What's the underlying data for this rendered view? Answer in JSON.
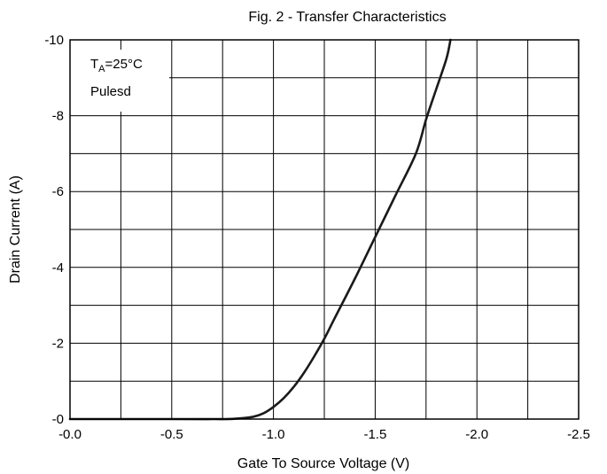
{
  "chart_data": {
    "type": "line",
    "title": "Fig. 2 - Transfer Characteristics",
    "xlabel": "Gate To Source Voltage (V)",
    "ylabel": "Drain Current (A)",
    "xlim": [
      0,
      -2.5
    ],
    "ylim": [
      0,
      -10
    ],
    "x_ticks": [
      0,
      -0.25,
      -0.5,
      -0.75,
      -1.0,
      -1.25,
      -1.5,
      -1.75,
      -2.0,
      -2.25,
      -2.5
    ],
    "x_tick_labels": [
      "-0.0",
      "",
      "-0.5",
      "",
      "-1.0",
      "",
      "-1.5",
      "",
      "-2.0",
      "",
      "-2.5"
    ],
    "y_ticks": [
      0,
      -1,
      -2,
      -3,
      -4,
      -5,
      -6,
      -7,
      -8,
      -9,
      -10
    ],
    "y_tick_labels": [
      "-0",
      "",
      "-2",
      "",
      "-4",
      "",
      "-6",
      "",
      "-8",
      "",
      "-10"
    ],
    "grid": true,
    "annotation": {
      "temp_symbol": "T",
      "temp_subscript": "A",
      "temp_value": "=25°C",
      "pulse_text": "Pulesd",
      "placement": "top-left"
    },
    "series": [
      {
        "x": [
          0,
          -0.5,
          -0.7,
          -0.8,
          -0.9,
          -0.95,
          -1.0,
          -1.05,
          -1.1,
          -1.15,
          -1.2,
          -1.25,
          -1.3,
          -1.4,
          -1.5,
          -1.6,
          -1.7,
          -1.75,
          -1.8,
          -1.85,
          -1.87
        ],
        "y": [
          0,
          0,
          0,
          -0.005,
          -0.06,
          -0.15,
          -0.32,
          -0.55,
          -0.85,
          -1.22,
          -1.65,
          -2.12,
          -2.65,
          -3.7,
          -4.8,
          -5.9,
          -7.0,
          -7.9,
          -8.7,
          -9.5,
          -10.0
        ]
      }
    ],
    "style": {
      "line_color": "#1a1a1a",
      "grid_color": "#000000"
    }
  }
}
